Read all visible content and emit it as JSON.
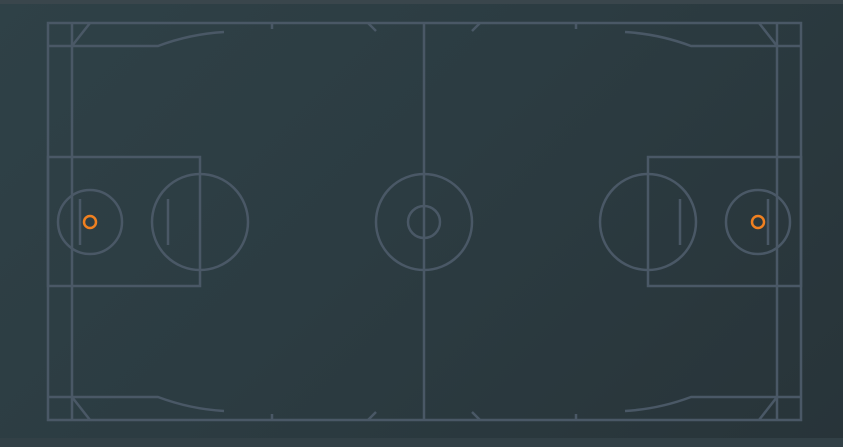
{
  "court": {
    "background_color": "#2d3d43",
    "line_color": "#4a5866",
    "hoop_color": "#f08020"
  },
  "icons": {
    "left_hoop": "hoop-ring-icon",
    "right_hoop": "hoop-ring-icon"
  }
}
